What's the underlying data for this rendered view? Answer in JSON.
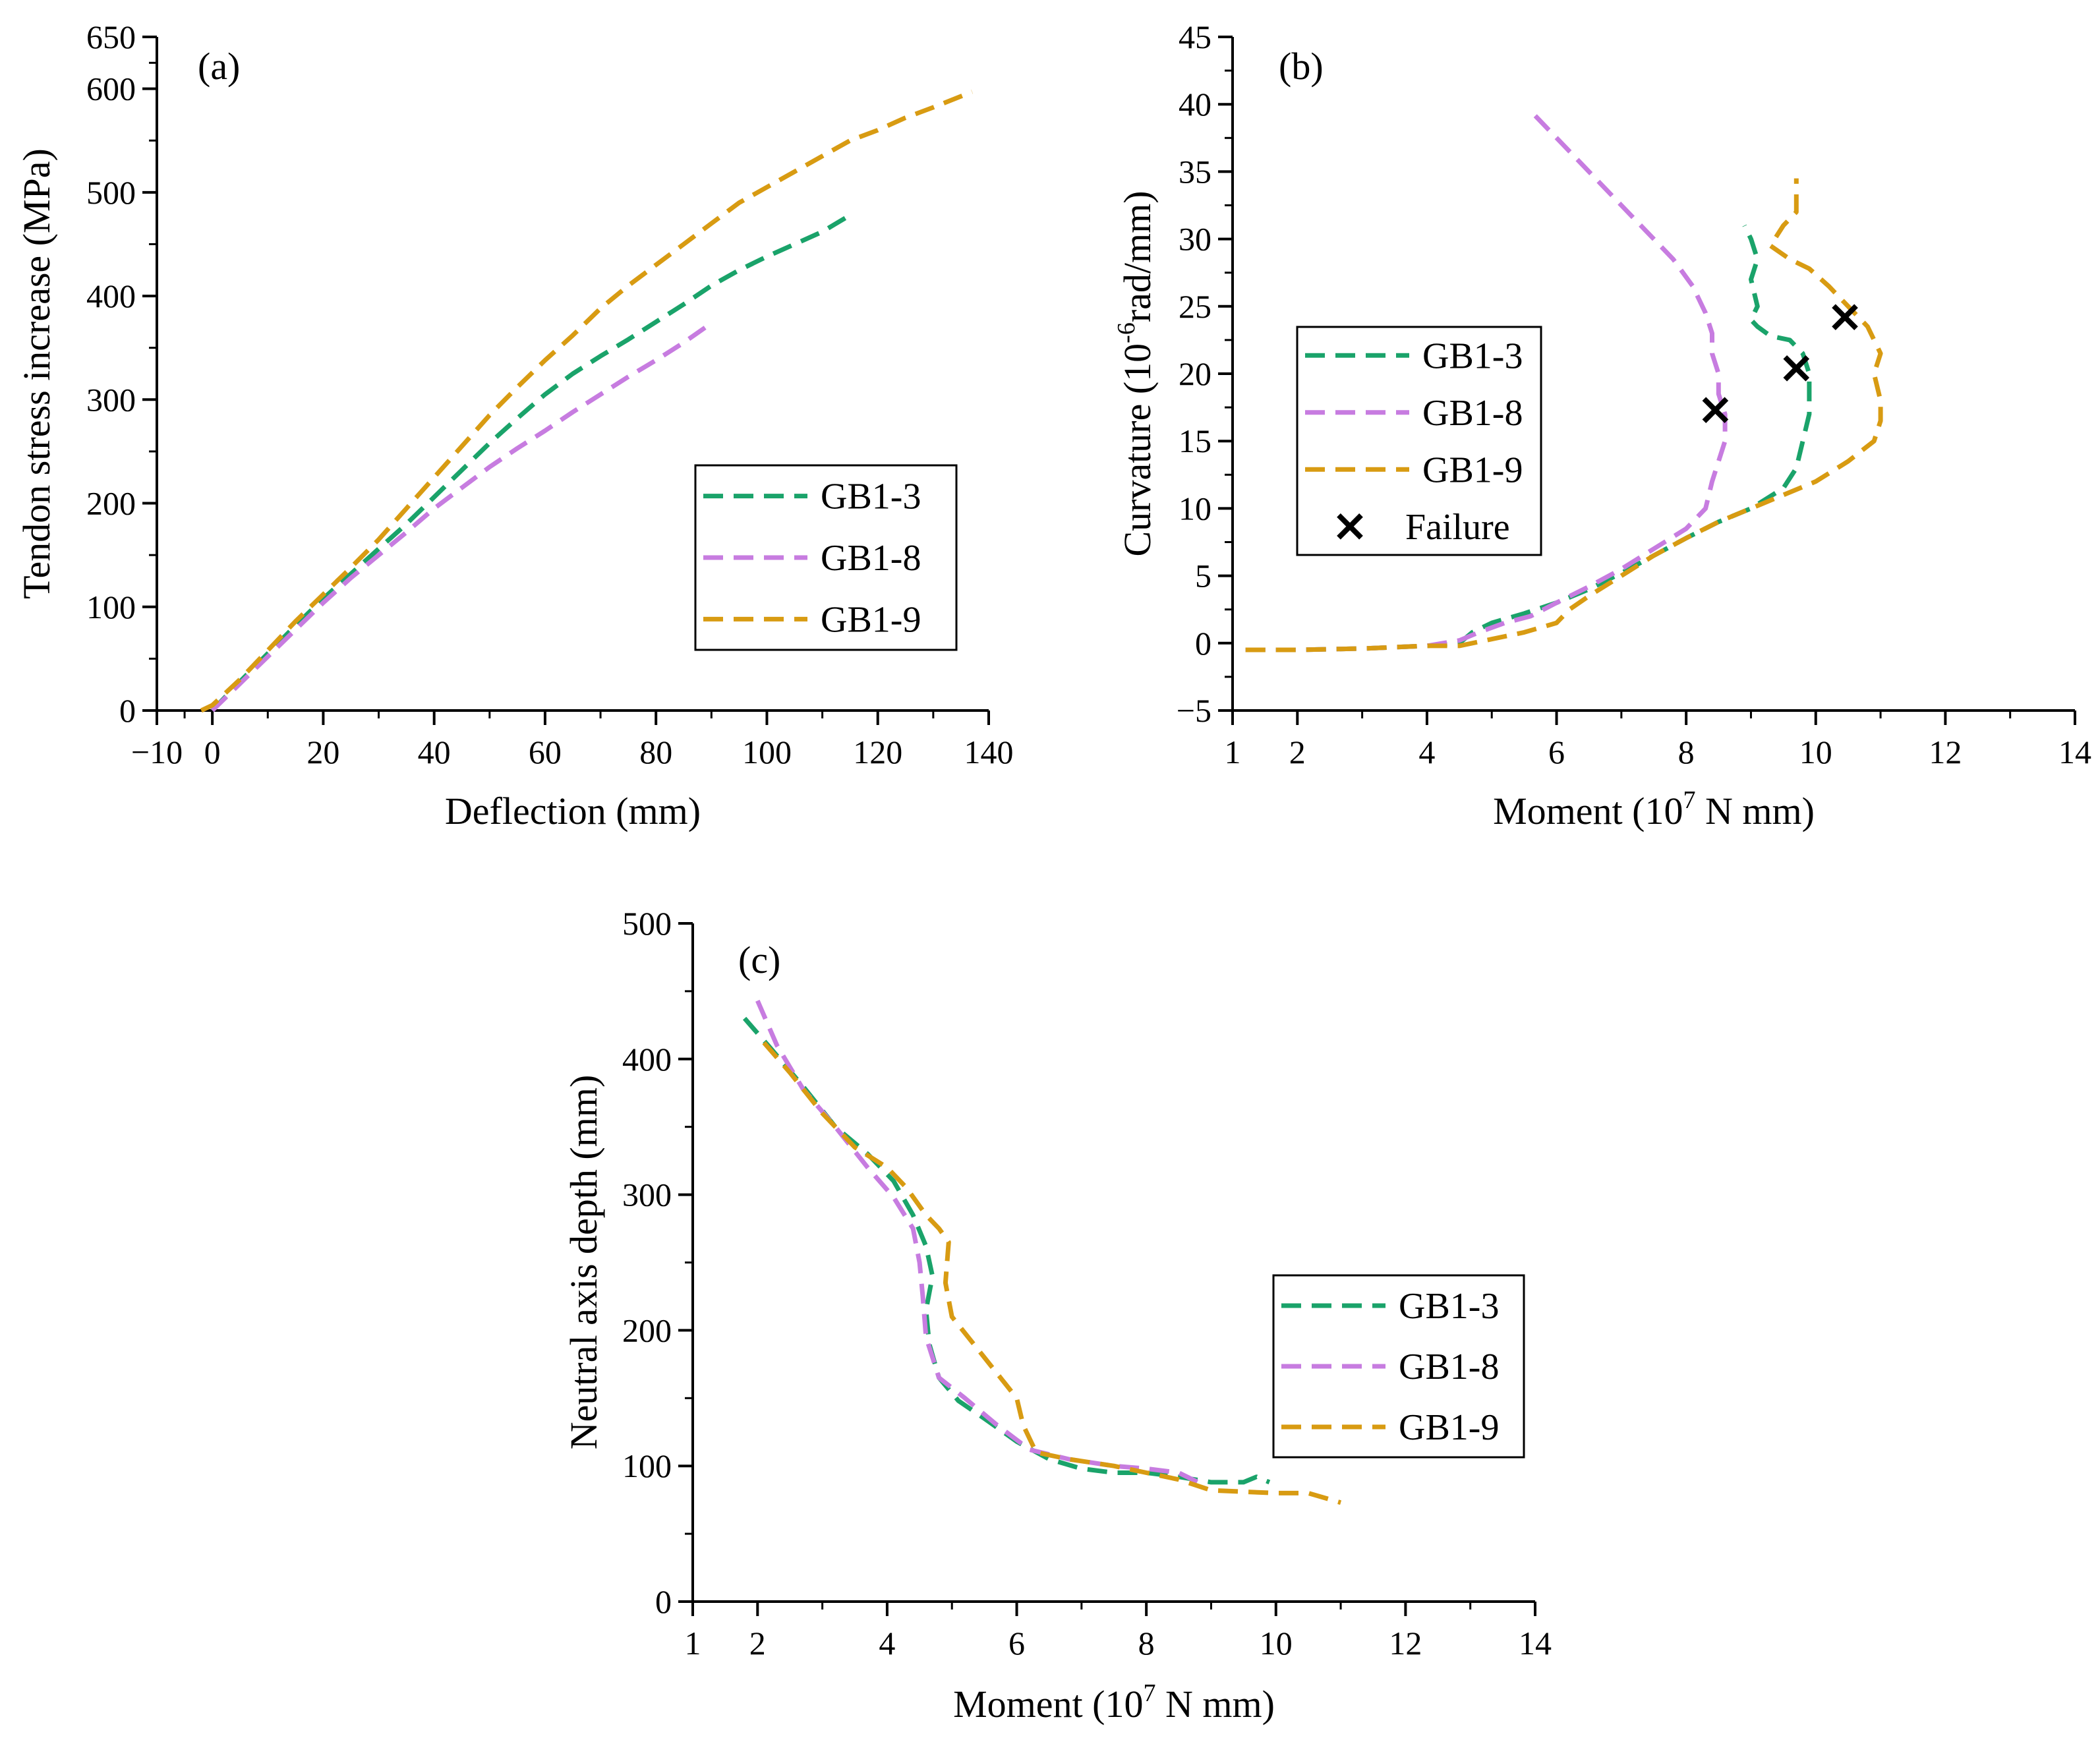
{
  "figure": {
    "series_styles": [
      {
        "name": "GB1-3",
        "color": "#1aa36a"
      },
      {
        "name": "GB1-8",
        "color": "#c77ce0"
      },
      {
        "name": "GB1-9",
        "color": "#d89b12"
      }
    ],
    "failure_label": "Failure"
  },
  "chart_data": [
    {
      "panel": "(a)",
      "type": "line",
      "xlabel": "Deflection (mm)",
      "ylabel": "Tendon stress increase (MPa)",
      "xlim": [
        -10,
        140
      ],
      "ylim": [
        0,
        650
      ],
      "xticks": [
        -10,
        0,
        20,
        40,
        60,
        80,
        100,
        120,
        140
      ],
      "xtick_labels": [
        "−10",
        "0",
        "20",
        "40",
        "60",
        "80",
        "100",
        "120",
        "140"
      ],
      "yticks": [
        0,
        100,
        200,
        300,
        400,
        500,
        600,
        650
      ],
      "ytick_labels": [
        "0",
        "100",
        "200",
        "300",
        "400",
        "500",
        "600",
        "650"
      ],
      "legend_position": "center-right",
      "series": [
        {
          "name": "GB1-3",
          "x": [
            0,
            5,
            10,
            15,
            20,
            25,
            30,
            35,
            40,
            45,
            50,
            55,
            60,
            65,
            70,
            75,
            80,
            85,
            90,
            95,
            100,
            105,
            110,
            115
          ],
          "y": [
            0,
            28,
            55,
            82,
            108,
            132,
            156,
            180,
            206,
            232,
            258,
            282,
            305,
            325,
            342,
            358,
            375,
            392,
            410,
            425,
            438,
            450,
            462,
            478
          ]
        },
        {
          "name": "GB1-8",
          "x": [
            0,
            5,
            10,
            15,
            20,
            25,
            30,
            35,
            40,
            45,
            50,
            55,
            60,
            65,
            70,
            75,
            80,
            85,
            89
          ],
          "y": [
            0,
            26,
            52,
            78,
            104,
            128,
            150,
            172,
            195,
            215,
            235,
            253,
            270,
            288,
            305,
            322,
            338,
            355,
            370
          ]
        },
        {
          "name": "GB1-9",
          "x": [
            -2,
            0,
            5,
            10,
            15,
            20,
            25,
            30,
            35,
            40,
            45,
            50,
            55,
            60,
            65,
            70,
            75,
            80,
            85,
            90,
            95,
            100,
            105,
            110,
            115,
            120,
            125,
            130,
            137
          ],
          "y": [
            0,
            5,
            30,
            58,
            86,
            112,
            138,
            165,
            195,
            225,
            255,
            285,
            312,
            338,
            362,
            388,
            410,
            430,
            450,
            470,
            490,
            505,
            520,
            535,
            550,
            560,
            572,
            582,
            597
          ]
        }
      ]
    },
    {
      "panel": "(b)",
      "type": "line",
      "xlabel": "Moment (10",
      "xlabel_sup": "7",
      "xlabel_tail": " N mm)",
      "ylabel": "Curvature (10",
      "ylabel_sup": "-6",
      "ylabel_tail": "rad/mm)",
      "xlim": [
        1,
        14
      ],
      "ylim": [
        -5,
        45
      ],
      "xticks": [
        1,
        2,
        4,
        6,
        8,
        10,
        12,
        14
      ],
      "xtick_labels": [
        "1",
        "2",
        "4",
        "6",
        "8",
        "10",
        "12",
        "14"
      ],
      "yticks": [
        -5,
        0,
        5,
        10,
        15,
        20,
        25,
        30,
        35,
        40,
        45
      ],
      "ytick_labels": [
        "−5",
        "0",
        "5",
        "10",
        "15",
        "20",
        "25",
        "30",
        "35",
        "40",
        "45"
      ],
      "legend_position": "center-left",
      "series": [
        {
          "name": "GB1-3",
          "x": [
            1.2,
            2.0,
            3.0,
            4.0,
            4.5,
            4.7,
            5.0,
            5.5,
            6.0,
            6.5,
            7.0,
            7.5,
            8.0,
            8.5,
            9.0,
            9.5,
            9.7,
            9.8,
            9.9,
            9.9,
            9.8,
            9.6,
            9.3,
            9.1,
            9.0,
            9.1,
            9.0,
            9.1,
            9.0,
            8.9
          ],
          "y": [
            -0.5,
            -0.5,
            -0.4,
            -0.2,
            0.0,
            0.8,
            1.5,
            2.2,
            3.0,
            4.0,
            5.2,
            6.5,
            7.8,
            9.0,
            10.0,
            11.5,
            13.0,
            15.0,
            17.0,
            20.0,
            21.5,
            22.5,
            22.8,
            23.5,
            24.0,
            25.0,
            27.0,
            28.5,
            30.0,
            31.0
          ]
        },
        {
          "name": "GB1-8",
          "x": [
            1.2,
            2.0,
            3.0,
            4.0,
            4.5,
            4.8,
            5.2,
            5.6,
            6.0,
            6.5,
            7.0,
            7.5,
            8.0,
            8.3,
            8.4,
            8.5,
            8.6,
            8.6,
            8.5,
            8.5,
            8.4,
            8.4,
            8.3,
            8.1,
            7.8,
            7.4,
            7.0,
            6.5,
            6.1,
            5.6
          ],
          "y": [
            -0.5,
            -0.5,
            -0.4,
            -0.2,
            0.2,
            0.8,
            1.5,
            2.0,
            3.0,
            4.2,
            5.5,
            7.0,
            8.5,
            10.0,
            12.0,
            13.5,
            15.0,
            17.0,
            18.5,
            20.0,
            21.5,
            23.0,
            24.5,
            26.5,
            28.5,
            30.5,
            32.5,
            35.0,
            37.0,
            39.5
          ]
        },
        {
          "name": "GB1-9",
          "x": [
            1.2,
            2.0,
            3.0,
            4.0,
            4.5,
            5.0,
            5.5,
            6.0,
            6.2,
            6.5,
            7.0,
            7.5,
            8.0,
            8.5,
            9.0,
            9.5,
            10.0,
            10.5,
            10.9,
            11.0,
            11.0,
            10.9,
            11.0,
            10.8,
            10.5,
            10.2,
            9.9,
            9.6,
            9.3,
            9.5,
            9.7,
            9.7
          ],
          "y": [
            -0.5,
            -0.5,
            -0.4,
            -0.2,
            -0.2,
            0.3,
            0.8,
            1.5,
            2.5,
            3.5,
            5.0,
            6.5,
            7.8,
            9.0,
            10.0,
            11.0,
            12.0,
            13.5,
            15.0,
            16.5,
            18.0,
            20.0,
            21.5,
            23.5,
            25.0,
            26.5,
            27.8,
            28.5,
            29.5,
            31.0,
            32.0,
            34.5
          ]
        }
      ],
      "failure_points": [
        {
          "x": 8.45,
          "y": 17.3
        },
        {
          "x": 9.7,
          "y": 20.4
        },
        {
          "x": 10.45,
          "y": 24.2
        }
      ]
    },
    {
      "panel": "(c)",
      "type": "line",
      "xlabel": "Moment (10",
      "xlabel_sup": "7",
      "xlabel_tail": " N mm)",
      "ylabel": "Neutral axis depth (mm)",
      "xlim": [
        1,
        14
      ],
      "ylim": [
        0,
        500
      ],
      "xticks": [
        1,
        2,
        4,
        6,
        8,
        10,
        12,
        14
      ],
      "xtick_labels": [
        "1",
        "2",
        "4",
        "6",
        "8",
        "10",
        "12",
        "14"
      ],
      "yticks": [
        0,
        100,
        200,
        300,
        400,
        500
      ],
      "ytick_labels": [
        "0",
        "100",
        "200",
        "300",
        "400",
        "500"
      ],
      "legend_position": "center-right",
      "series": [
        {
          "name": "GB1-3",
          "x": [
            1.8,
            2.2,
            2.7,
            3.2,
            3.7,
            4.1,
            4.4,
            4.6,
            4.7,
            4.6,
            4.65,
            4.8,
            5.1,
            5.5,
            6.0,
            6.5,
            7.0,
            7.5,
            8.0,
            8.5,
            9.0,
            9.5,
            9.7,
            9.9
          ],
          "y": [
            430,
            408,
            380,
            350,
            330,
            310,
            285,
            262,
            240,
            215,
            190,
            165,
            148,
            135,
            118,
            105,
            98,
            95,
            95,
            92,
            88,
            88,
            92,
            88
          ]
        },
        {
          "name": "GB1-8",
          "x": [
            2.0,
            2.3,
            2.7,
            3.2,
            3.7,
            4.1,
            4.4,
            4.5,
            4.55,
            4.6,
            4.8,
            5.2,
            5.7,
            6.2,
            6.8,
            7.5,
            8.0,
            8.5,
            8.8
          ],
          "y": [
            443,
            410,
            378,
            350,
            320,
            298,
            275,
            250,
            225,
            195,
            165,
            150,
            130,
            112,
            105,
            100,
            98,
            95,
            88
          ]
        },
        {
          "name": "GB1-9",
          "x": [
            2.1,
            2.5,
            3.0,
            3.5,
            4.0,
            4.3,
            4.6,
            4.8,
            4.95,
            4.9,
            5.0,
            5.5,
            6.0,
            6.1,
            6.3,
            6.8,
            7.5,
            8.0,
            8.5,
            9.0,
            10.0,
            10.5,
            11.0
          ],
          "y": [
            412,
            390,
            360,
            335,
            320,
            305,
            285,
            275,
            265,
            235,
            210,
            180,
            150,
            130,
            110,
            105,
            100,
            95,
            90,
            82,
            80,
            80,
            73
          ]
        }
      ]
    }
  ]
}
